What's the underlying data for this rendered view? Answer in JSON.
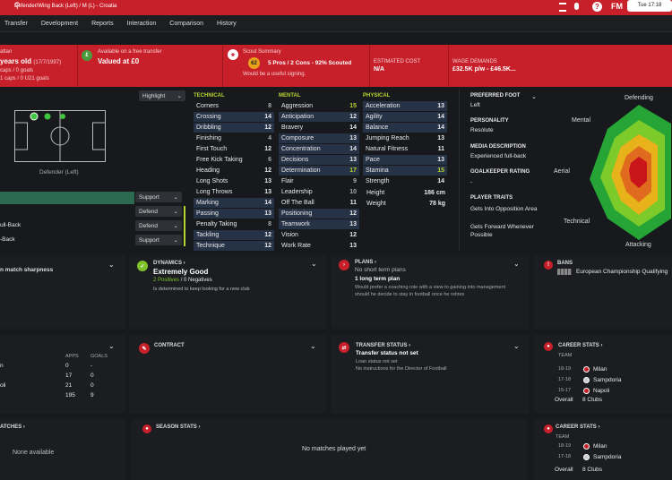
{
  "top": {
    "subtitle": "Defender/Wing Back (Left) / M (L) - Croatia",
    "date": "Tue 17:18"
  },
  "menu": [
    "Transfer",
    "Development",
    "Reports",
    "Interaction",
    "Comparison",
    "History"
  ],
  "info": {
    "nation_fragment": "attan",
    "age": "years old",
    "dob": "(17/7/1997)",
    "caps": "caps / 0 goals",
    "u21": "1 caps / 0 U21 goals",
    "transfer_label": "Available on a free transfer",
    "transfer_value": "Valued at £0",
    "scout_title": "Scout Summary",
    "scout_score": "62",
    "scout_text": "5 Pros / 2 Cons - 92% Scouted",
    "scout_note": "Would be a useful signing.",
    "cost_label": "ESTIMATED COST",
    "cost_value": "N/A",
    "wage_label": "WAGE DEMANDS",
    "wage_value": "£32.5K p/w - £46.5K..."
  },
  "highlight": "Highlight",
  "pitch_label": "Defender (Left)",
  "roles": [
    {
      "name": "",
      "duty": "Support"
    },
    {
      "name": "",
      "duty": "Defend"
    },
    {
      "name": "ull-Back",
      "duty": "Defend"
    },
    {
      "name": "-Back",
      "duty": "Support"
    }
  ],
  "technical": {
    "title": "TECHNICAL",
    "rows": [
      [
        "Corners",
        "8"
      ],
      [
        "Crossing",
        "14"
      ],
      [
        "Dribbling",
        "12"
      ],
      [
        "Finishing",
        "4"
      ],
      [
        "First Touch",
        "12"
      ],
      [
        "Free Kick Taking",
        "6"
      ],
      [
        "Heading",
        "12"
      ],
      [
        "Long Shots",
        "13"
      ],
      [
        "Long Throws",
        "13"
      ],
      [
        "Marking",
        "14"
      ],
      [
        "Passing",
        "13"
      ],
      [
        "Penalty Taking",
        "8"
      ],
      [
        "Tackling",
        "12"
      ],
      [
        "Technique",
        "12"
      ]
    ]
  },
  "mental": {
    "title": "MENTAL",
    "rows": [
      [
        "Aggression",
        "15"
      ],
      [
        "Anticipation",
        "12"
      ],
      [
        "Bravery",
        "14"
      ],
      [
        "Composure",
        "13"
      ],
      [
        "Concentration",
        "14"
      ],
      [
        "Decisions",
        "13"
      ],
      [
        "Determination",
        "17"
      ],
      [
        "Flair",
        "9"
      ],
      [
        "Leadership",
        "10"
      ],
      [
        "Off The Ball",
        "11"
      ],
      [
        "Positioning",
        "12"
      ],
      [
        "Teamwork",
        "13"
      ],
      [
        "Vision",
        "12"
      ],
      [
        "Work Rate",
        "13"
      ]
    ]
  },
  "physical": {
    "title": "PHYSICAL",
    "rows": [
      [
        "Acceleration",
        "13"
      ],
      [
        "Agility",
        "14"
      ],
      [
        "Balance",
        "14"
      ],
      [
        "Jumping Reach",
        "13"
      ],
      [
        "Natural Fitness",
        "11"
      ],
      [
        "Pace",
        "13"
      ],
      [
        "Stamina",
        "15"
      ],
      [
        "Strength",
        "14"
      ]
    ],
    "height_label": "Height",
    "height": "186 cm",
    "weight_label": "Weight",
    "weight": "78 kg"
  },
  "side": {
    "foot_label": "PREFERRED FOOT",
    "foot": "Left",
    "pers_label": "PERSONALITY",
    "pers": "Resolute",
    "media_label": "MEDIA DESCRIPTION",
    "media": "Experienced full-back",
    "gk_label": "GOALKEEPER RATING",
    "gk": "-",
    "traits_label": "PLAYER TRAITS",
    "traits": [
      "Gets Into Opposition Area",
      "Gets Forward Whenever Possible"
    ]
  },
  "radar": {
    "labels": [
      "Defending",
      "Mental",
      "Aerial",
      "Technical",
      "Attacking"
    ]
  },
  "cards": {
    "sharpness": "n match sharpness",
    "dyn_title": "DYNAMICS",
    "dyn_value": "Extremely Good",
    "dyn_pos": "2 Positives",
    "dyn_neg": "0 Negatives",
    "dyn_sep": "/",
    "dyn_note": "Is determined to keep looking for a new club",
    "plans_title": "PLANS",
    "plans_line1": "No short term plans",
    "plans_line2": "1 long term plan",
    "plans_note1": "Would prefer a coaching role with a view to gaining into management",
    "plans_note2": "should he decide to stay in football once he retires",
    "bans_title": "BANS",
    "bans_value": "European Championship Qualifying",
    "contract_title": "CONTRACT",
    "ts_title": "TRANSFER STATUS",
    "ts_line": "Transfer status not set",
    "ts_note1": "Loan status not set",
    "ts_note2": "No instructions for the Director of Football",
    "career_title": "CAREER STATS",
    "team_label": "TEAM",
    "career_rows": [
      [
        "18-19",
        "Milan"
      ],
      [
        "17-18",
        "Sampdoria"
      ],
      [
        "15-17",
        "Napoli"
      ]
    ],
    "overall_label": "Overall",
    "overall_clubs": "8 Clubs",
    "apps_label": "APPS",
    "goals_label": "GOALS",
    "apps_rows": [
      [
        "n",
        "0",
        "-"
      ],
      [
        "",
        "17",
        "0"
      ],
      [
        "oli",
        "21",
        "0"
      ],
      [
        "",
        "195",
        "9"
      ]
    ],
    "matches_title": "ATCHES",
    "none_avail": "None available",
    "season_title": "SEASON STATS",
    "no_matches": "No matches played yet",
    "career2_title": "CAREER STATS",
    "career2_rows": [
      [
        "18-19",
        "Milan"
      ],
      [
        "17-18",
        "Sampdoria"
      ]
    ]
  },
  "colors": {
    "red": "#c8202a",
    "green": "#b9d332",
    "shade": "#263246"
  }
}
